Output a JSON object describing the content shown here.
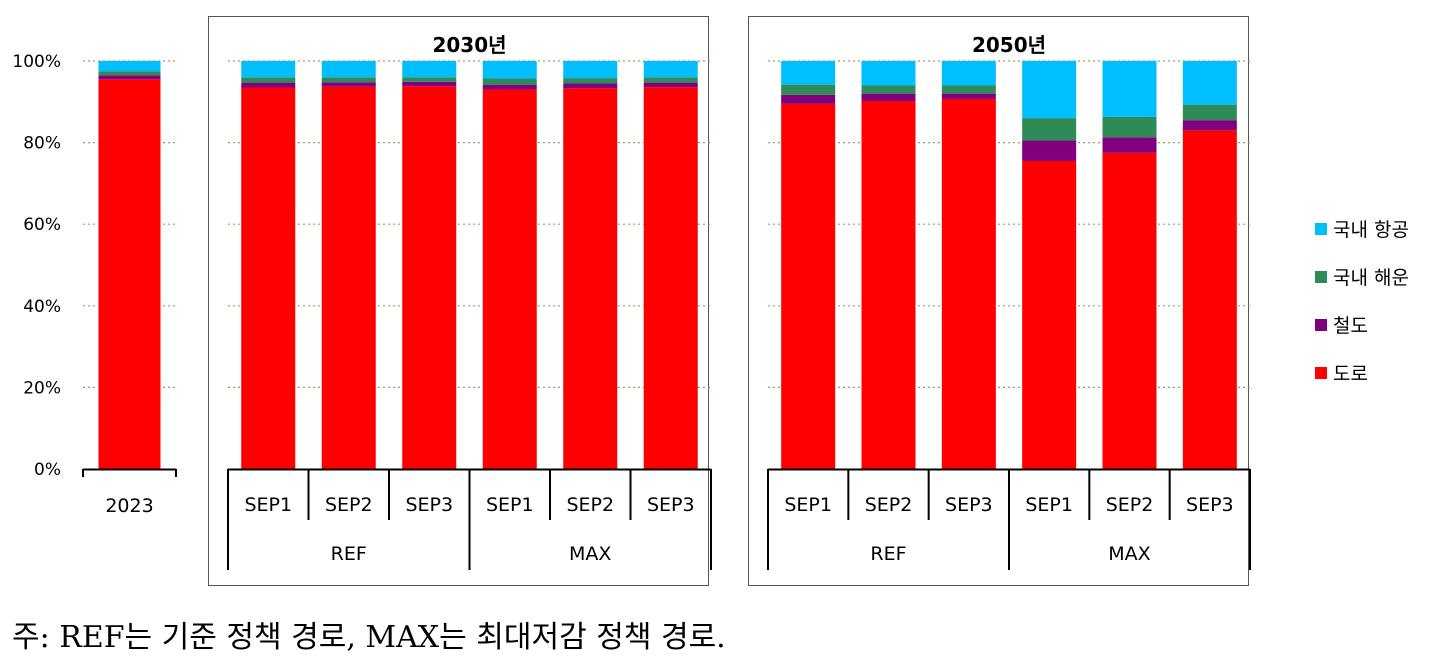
{
  "chart_data": {
    "type": "bar",
    "stacked": true,
    "ylim": [
      0,
      100
    ],
    "yticks": [
      "0%",
      "20%",
      "40%",
      "60%",
      "80%",
      "100%"
    ],
    "grid": true,
    "legend_position": "right",
    "series_names": [
      "국내 항공",
      "국내 해운",
      "철도",
      "도로"
    ],
    "colors": {
      "도로": "#ff0000",
      "철도": "#800080",
      "국내 해운": "#2e8b57",
      "국내 항공": "#00bfff"
    },
    "panels": [
      {
        "title": "",
        "groups": [
          {
            "name": "",
            "bars": [
              {
                "label": "2023",
                "values": {
                  "도로": 95.5,
                  "철도": 1.0,
                  "국내 해운": 1.0,
                  "국내 항공": 2.5
                }
              }
            ]
          }
        ]
      },
      {
        "title": "2030년",
        "groups": [
          {
            "name": "REF",
            "bars": [
              {
                "label": "SEP1",
                "values": {
                  "도로": 93.5,
                  "철도": 1.2,
                  "국내 해운": 1.3,
                  "국내 항공": 4.0
                }
              },
              {
                "label": "SEP2",
                "values": {
                  "도로": 93.7,
                  "철도": 1.1,
                  "국내 해운": 1.2,
                  "국내 항공": 4.0
                }
              },
              {
                "label": "SEP3",
                "values": {
                  "도로": 93.8,
                  "철도": 1.1,
                  "국내 해운": 1.1,
                  "국내 항공": 4.0
                }
              }
            ]
          },
          {
            "name": "MAX",
            "bars": [
              {
                "label": "SEP1",
                "values": {
                  "도로": 93.0,
                  "철도": 1.2,
                  "국내 해운": 1.5,
                  "국내 항공": 4.3
                }
              },
              {
                "label": "SEP2",
                "values": {
                  "도로": 93.3,
                  "철도": 1.2,
                  "국내 해운": 1.3,
                  "국내 항공": 4.2
                }
              },
              {
                "label": "SEP3",
                "values": {
                  "도로": 93.6,
                  "철도": 1.1,
                  "국내 해운": 1.3,
                  "국내 항공": 4.0
                }
              }
            ]
          }
        ]
      },
      {
        "title": "2050년",
        "groups": [
          {
            "name": "REF",
            "bars": [
              {
                "label": "SEP1",
                "values": {
                  "도로": 89.5,
                  "철도": 2.2,
                  "국내 해운": 2.5,
                  "국내 항공": 5.8
                }
              },
              {
                "label": "SEP2",
                "values": {
                  "도로": 90.2,
                  "철도": 1.8,
                  "국내 해운": 2.0,
                  "국내 항공": 6.0
                }
              },
              {
                "label": "SEP3",
                "values": {
                  "도로": 90.7,
                  "철도": 1.3,
                  "국내 해운": 2.0,
                  "국내 항공": 6.0
                }
              }
            ]
          },
          {
            "name": "MAX",
            "bars": [
              {
                "label": "SEP1",
                "values": {
                  "도로": 75.5,
                  "철도": 5.0,
                  "국내 해운": 5.5,
                  "국내 항공": 14.0
                }
              },
              {
                "label": "SEP2",
                "values": {
                  "도로": 77.5,
                  "철도": 3.8,
                  "국내 해운": 5.0,
                  "국내 항공": 13.7
                }
              },
              {
                "label": "SEP3",
                "values": {
                  "도로": 83.0,
                  "철도": 2.5,
                  "국내 해운": 3.8,
                  "국내 항공": 10.7
                }
              }
            ]
          }
        ]
      }
    ]
  },
  "note": "주: REF는 기준 정책 경로, MAX는 최대저감 정책 경로."
}
